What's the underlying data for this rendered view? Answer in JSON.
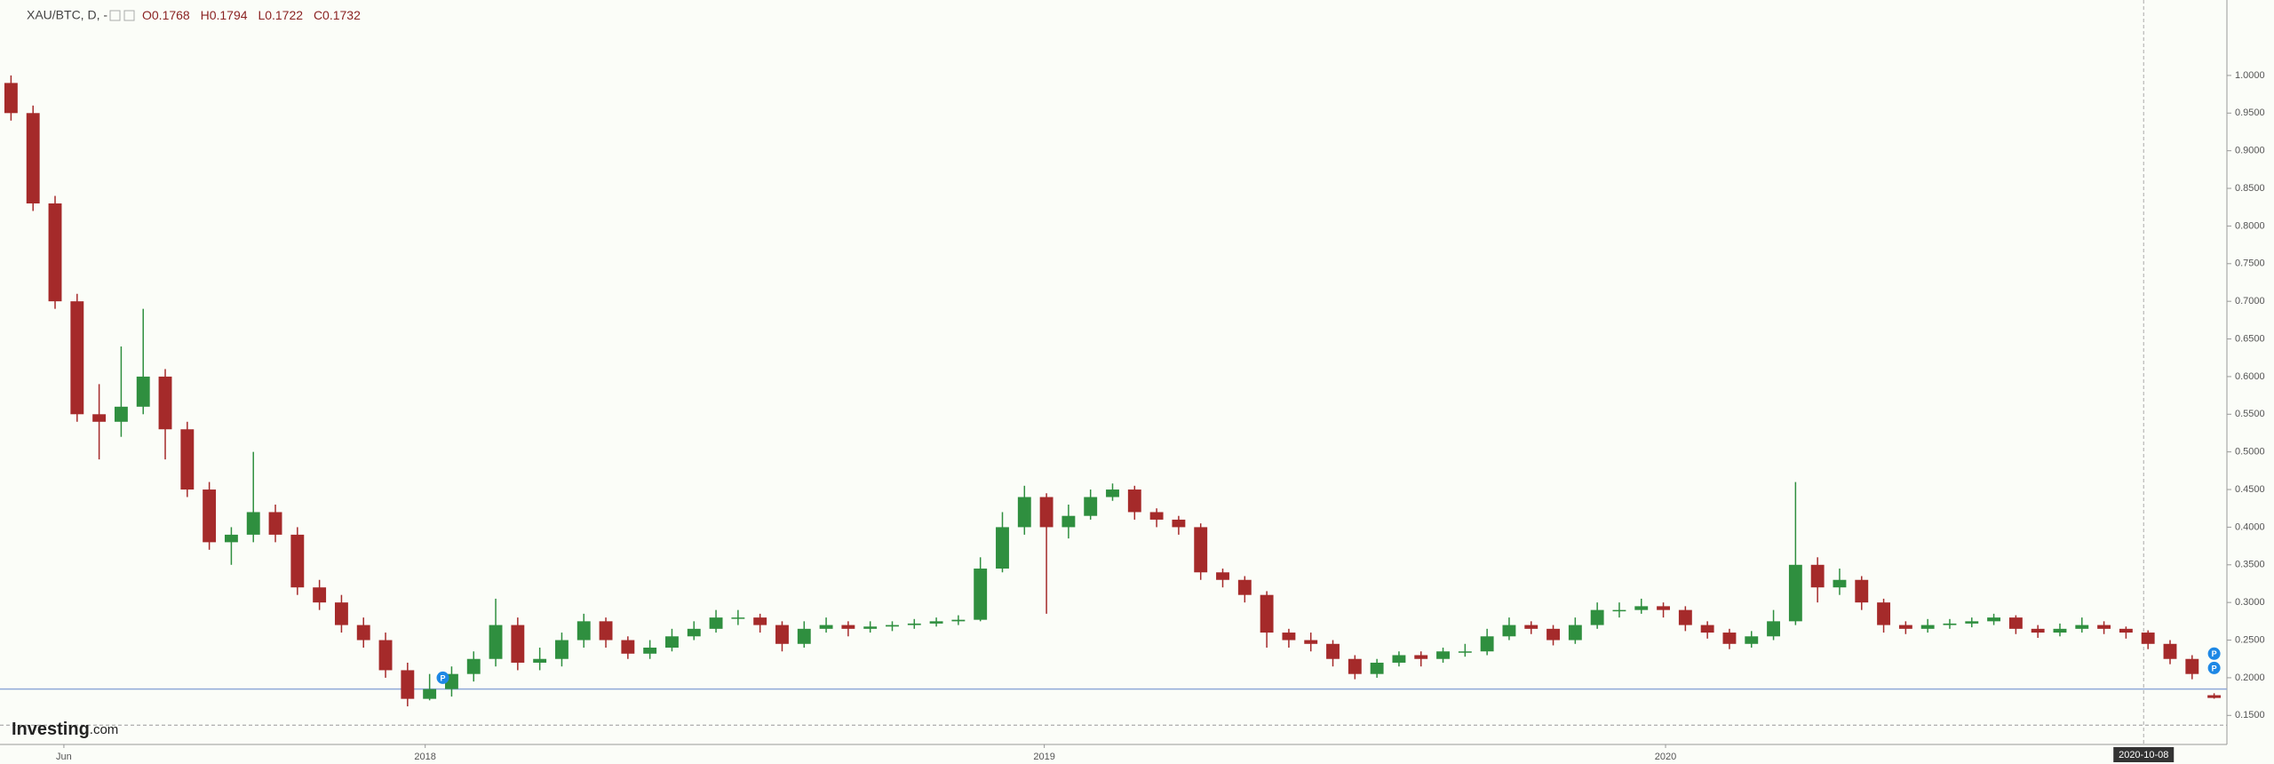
{
  "chart_data": {
    "type": "candlestick",
    "symbol": "XAU/BTC, D, -",
    "ohlc_labels": [
      "O0.1768",
      "H0.1794",
      "L0.1722",
      "C0.1732"
    ],
    "logo": "Investing",
    "logo_suffix": ".com",
    "up_color": "#2f8f3f",
    "down_color": "#a52a2a",
    "open": [
      0.99,
      0.95,
      0.83,
      0.7,
      0.55,
      0.54,
      0.56,
      0.6,
      0.53,
      0.45,
      0.38,
      0.39,
      0.42,
      0.39,
      0.32,
      0.3,
      0.27,
      0.25,
      0.21,
      0.172,
      0.185,
      0.205,
      0.225,
      0.27,
      0.22,
      0.225,
      0.25,
      0.275,
      0.25,
      0.232,
      0.24,
      0.255,
      0.265,
      0.28,
      0.28,
      0.27,
      0.245,
      0.265,
      0.27,
      0.265,
      0.268,
      0.27,
      0.272,
      0.275,
      0.277,
      0.345,
      0.4,
      0.44,
      0.4,
      0.415,
      0.44,
      0.45,
      0.42,
      0.41,
      0.4,
      0.34,
      0.33,
      0.31,
      0.26,
      0.25,
      0.245,
      0.225,
      0.205,
      0.22,
      0.23,
      0.225,
      0.235,
      0.235,
      0.255,
      0.27,
      0.265,
      0.25,
      0.27,
      0.29,
      0.29,
      0.295,
      0.29,
      0.27,
      0.26,
      0.245,
      0.255,
      0.275,
      0.35,
      0.32,
      0.33,
      0.3,
      0.27,
      0.265,
      0.27,
      0.272,
      0.275,
      0.28,
      0.265,
      0.26,
      0.265,
      0.27,
      0.265,
      0.26,
      0.245,
      0.225,
      0.1768
    ],
    "high": [
      1.0,
      0.96,
      0.84,
      0.71,
      0.59,
      0.64,
      0.69,
      0.61,
      0.54,
      0.46,
      0.4,
      0.5,
      0.43,
      0.4,
      0.33,
      0.31,
      0.28,
      0.26,
      0.22,
      0.205,
      0.215,
      0.235,
      0.305,
      0.28,
      0.24,
      0.26,
      0.285,
      0.28,
      0.255,
      0.25,
      0.265,
      0.275,
      0.29,
      0.29,
      0.285,
      0.275,
      0.275,
      0.28,
      0.275,
      0.275,
      0.275,
      0.278,
      0.28,
      0.283,
      0.36,
      0.42,
      0.455,
      0.445,
      0.43,
      0.45,
      0.458,
      0.455,
      0.425,
      0.415,
      0.405,
      0.345,
      0.335,
      0.315,
      0.265,
      0.26,
      0.25,
      0.23,
      0.225,
      0.235,
      0.235,
      0.24,
      0.245,
      0.265,
      0.28,
      0.275,
      0.27,
      0.28,
      0.3,
      0.3,
      0.305,
      0.3,
      0.295,
      0.275,
      0.265,
      0.262,
      0.29,
      0.46,
      0.36,
      0.345,
      0.335,
      0.305,
      0.275,
      0.278,
      0.278,
      0.28,
      0.285,
      0.283,
      0.27,
      0.272,
      0.28,
      0.275,
      0.268,
      0.263,
      0.25,
      0.23,
      0.1794
    ],
    "low": [
      0.94,
      0.82,
      0.69,
      0.54,
      0.49,
      0.52,
      0.55,
      0.49,
      0.44,
      0.37,
      0.35,
      0.38,
      0.38,
      0.31,
      0.29,
      0.26,
      0.24,
      0.2,
      0.162,
      0.17,
      0.175,
      0.195,
      0.215,
      0.21,
      0.21,
      0.215,
      0.24,
      0.24,
      0.225,
      0.225,
      0.235,
      0.25,
      0.26,
      0.27,
      0.26,
      0.235,
      0.24,
      0.26,
      0.255,
      0.26,
      0.262,
      0.265,
      0.268,
      0.27,
      0.275,
      0.34,
      0.39,
      0.285,
      0.385,
      0.41,
      0.435,
      0.41,
      0.4,
      0.39,
      0.33,
      0.32,
      0.3,
      0.24,
      0.24,
      0.235,
      0.215,
      0.198,
      0.2,
      0.215,
      0.215,
      0.22,
      0.228,
      0.23,
      0.25,
      0.258,
      0.243,
      0.245,
      0.265,
      0.28,
      0.285,
      0.28,
      0.262,
      0.252,
      0.238,
      0.24,
      0.25,
      0.27,
      0.3,
      0.31,
      0.29,
      0.26,
      0.258,
      0.26,
      0.265,
      0.267,
      0.27,
      0.258,
      0.253,
      0.255,
      0.26,
      0.258,
      0.252,
      0.238,
      0.218,
      0.198,
      0.1722
    ],
    "close": [
      0.95,
      0.83,
      0.7,
      0.55,
      0.54,
      0.56,
      0.6,
      0.53,
      0.45,
      0.38,
      0.39,
      0.42,
      0.39,
      0.32,
      0.3,
      0.27,
      0.25,
      0.21,
      0.172,
      0.185,
      0.205,
      0.225,
      0.27,
      0.22,
      0.225,
      0.25,
      0.275,
      0.25,
      0.232,
      0.24,
      0.255,
      0.265,
      0.28,
      0.28,
      0.27,
      0.245,
      0.265,
      0.27,
      0.265,
      0.268,
      0.27,
      0.272,
      0.275,
      0.277,
      0.345,
      0.4,
      0.44,
      0.4,
      0.415,
      0.44,
      0.45,
      0.42,
      0.41,
      0.4,
      0.34,
      0.33,
      0.31,
      0.26,
      0.25,
      0.245,
      0.225,
      0.205,
      0.22,
      0.23,
      0.225,
      0.235,
      0.235,
      0.255,
      0.27,
      0.265,
      0.25,
      0.27,
      0.29,
      0.29,
      0.295,
      0.29,
      0.27,
      0.26,
      0.245,
      0.255,
      0.275,
      0.35,
      0.32,
      0.33,
      0.3,
      0.27,
      0.265,
      0.27,
      0.272,
      0.275,
      0.28,
      0.265,
      0.26,
      0.265,
      0.27,
      0.265,
      0.26,
      0.245,
      0.225,
      0.205,
      0.1732
    ],
    "xlim": [
      -0.5,
      100.5
    ],
    "xticks": [
      {
        "value": 2.4,
        "label": "Jun"
      },
      {
        "value": 18.8,
        "label": "2018"
      },
      {
        "value": 46.9,
        "label": "2019"
      },
      {
        "value": 75.1,
        "label": "2020"
      },
      {
        "value": 96.8,
        "label": "2020-10-08"
      }
    ],
    "ylim": [
      0.1114,
      1.1002
    ],
    "yticks": [
      {
        "value": 0.15,
        "label": "0.1500"
      },
      {
        "value": 0.2,
        "label": "0.2000"
      },
      {
        "value": 0.25,
        "label": "0.2500"
      },
      {
        "value": 0.3,
        "label": "0.3000"
      },
      {
        "value": 0.35,
        "label": "0.3500"
      },
      {
        "value": 0.4,
        "label": "0.4000"
      },
      {
        "value": 0.45,
        "label": "0.4500"
      },
      {
        "value": 0.5,
        "label": "0.5000"
      },
      {
        "value": 0.55,
        "label": "0.5500"
      },
      {
        "value": 0.6,
        "label": "0.6000"
      },
      {
        "value": 0.65,
        "label": "0.6500"
      },
      {
        "value": 0.7,
        "label": "0.7000"
      },
      {
        "value": 0.75,
        "label": "0.7500"
      },
      {
        "value": 0.8,
        "label": "0.8000"
      },
      {
        "value": 0.85,
        "label": "0.8500"
      },
      {
        "value": 0.9,
        "label": "0.9000"
      },
      {
        "value": 0.95,
        "label": "0.9500"
      },
      {
        "value": 1.0,
        "label": "1.0000"
      }
    ],
    "price_line": 0.185,
    "price_line_color": "#8fa8d8",
    "dashed_line": 0.137,
    "events": [
      {
        "x": 19.6,
        "y": 0.2,
        "label": "P"
      },
      {
        "x": 100,
        "y": 0.232,
        "label": "P"
      },
      {
        "x": 100,
        "y": 0.213,
        "label": "P"
      }
    ]
  }
}
